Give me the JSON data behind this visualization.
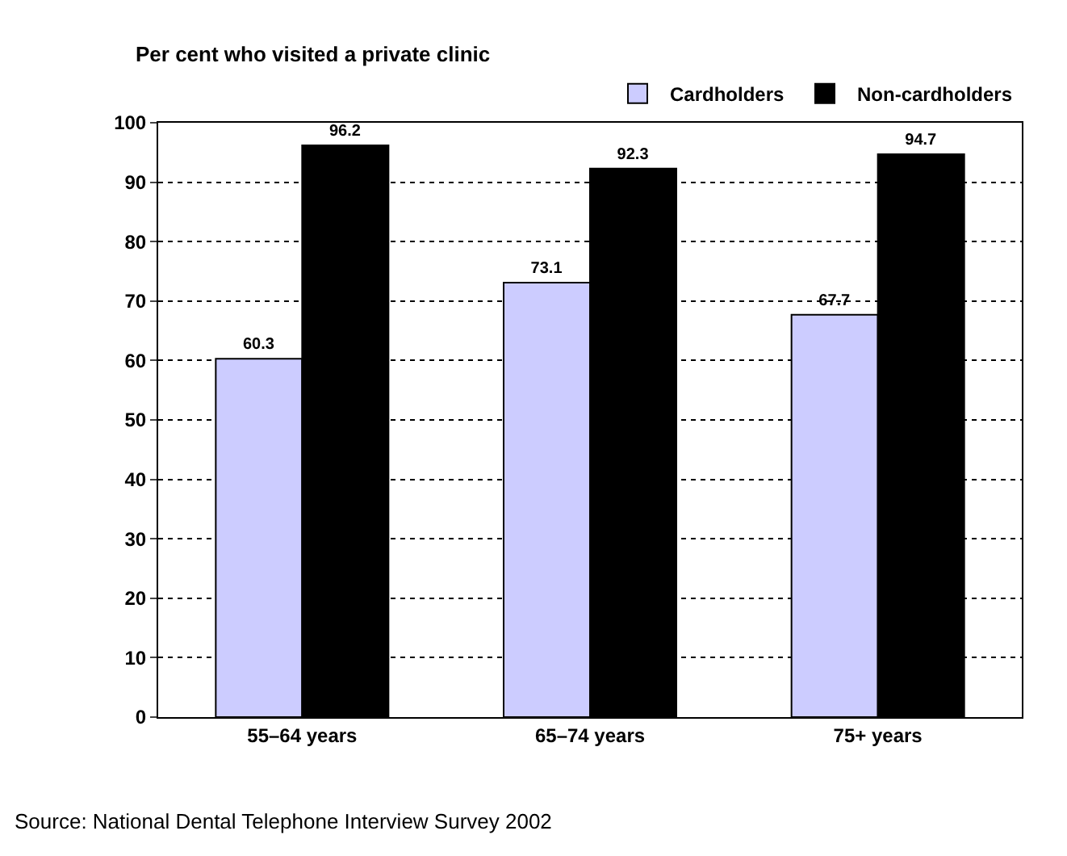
{
  "chart_data": {
    "type": "bar",
    "ylabel": "Per cent who visited a private clinic",
    "categories": [
      "55–64 years",
      "65–74 years",
      "75+ years"
    ],
    "series": [
      {
        "name": "Cardholders",
        "color": "#ccccff",
        "values": [
          60.3,
          73.1,
          67.7
        ]
      },
      {
        "name": "Non-cardholders",
        "color": "#000000",
        "values": [
          96.2,
          92.3,
          94.7
        ]
      }
    ],
    "ylim": [
      0,
      100
    ],
    "yticks": [
      0,
      10,
      20,
      30,
      40,
      50,
      60,
      70,
      80,
      90,
      100
    ],
    "grid": "y",
    "legend": "top right",
    "data_labels": true,
    "annotations": [
      "Source: National Dental Telephone Interview Survey 2002"
    ]
  }
}
